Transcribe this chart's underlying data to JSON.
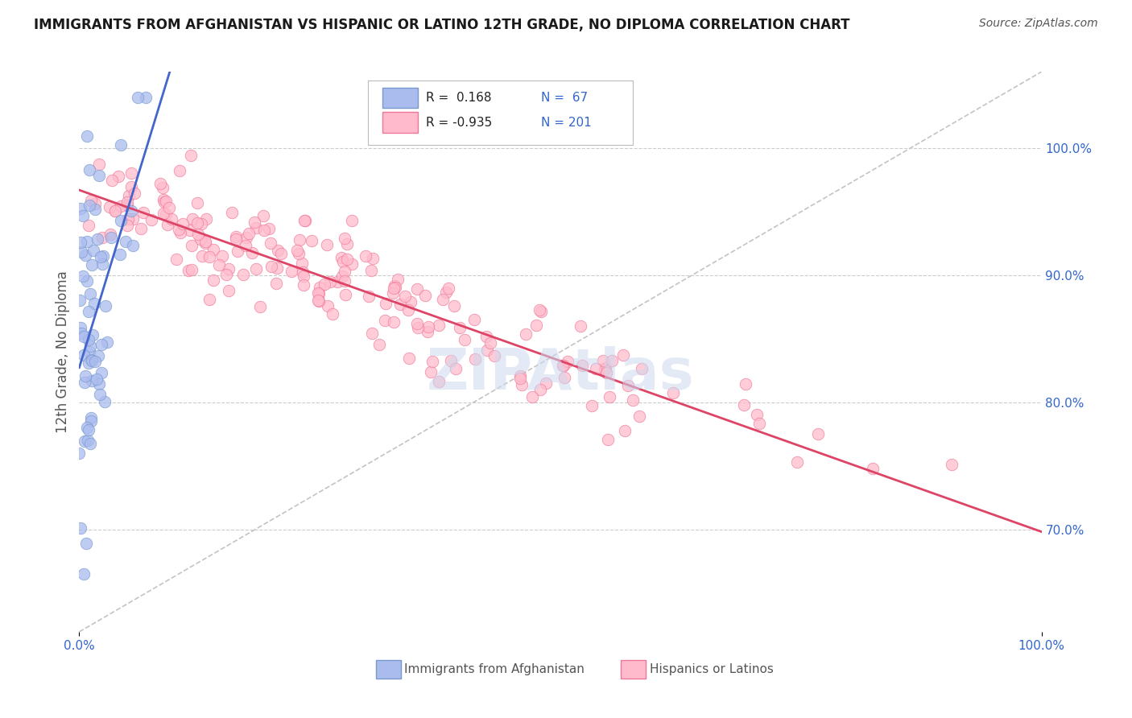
{
  "title": "IMMIGRANTS FROM AFGHANISTAN VS HISPANIC OR LATINO 12TH GRADE, NO DIPLOMA CORRELATION CHART",
  "source": "Source: ZipAtlas.com",
  "ylabel": "12th Grade, No Diploma",
  "grid_color": "#cccccc",
  "background_color": "#ffffff",
  "blue_scatter_color": "#aabbee",
  "blue_scatter_edge": "#7799cc",
  "pink_scatter_color": "#ffbbcc",
  "pink_scatter_edge": "#ee7799",
  "blue_line_color": "#4466cc",
  "pink_line_color": "#dd4466",
  "gray_dash_color": "#aaaaaa",
  "r_blue": 0.168,
  "n_blue": 67,
  "r_pink": -0.935,
  "n_pink": 201,
  "xlim": [
    0.0,
    1.0
  ],
  "ylim": [
    0.62,
    1.06
  ],
  "yticks": [
    0.7,
    0.8,
    0.9,
    1.0
  ],
  "ytick_labels": [
    "70.0%",
    "80.0%",
    "90.0%",
    "100.0%"
  ],
  "xticks": [
    0.0,
    1.0
  ],
  "xtick_labels": [
    "0.0%",
    "100.0%"
  ],
  "tick_color": "#3366cc",
  "watermark_color": "#ccd8ee",
  "watermark_text": "ZIPAtlas",
  "legend_r_text_color": "#222222",
  "legend_n_text_color": "#3366cc",
  "bottom_legend_color": "#555555"
}
